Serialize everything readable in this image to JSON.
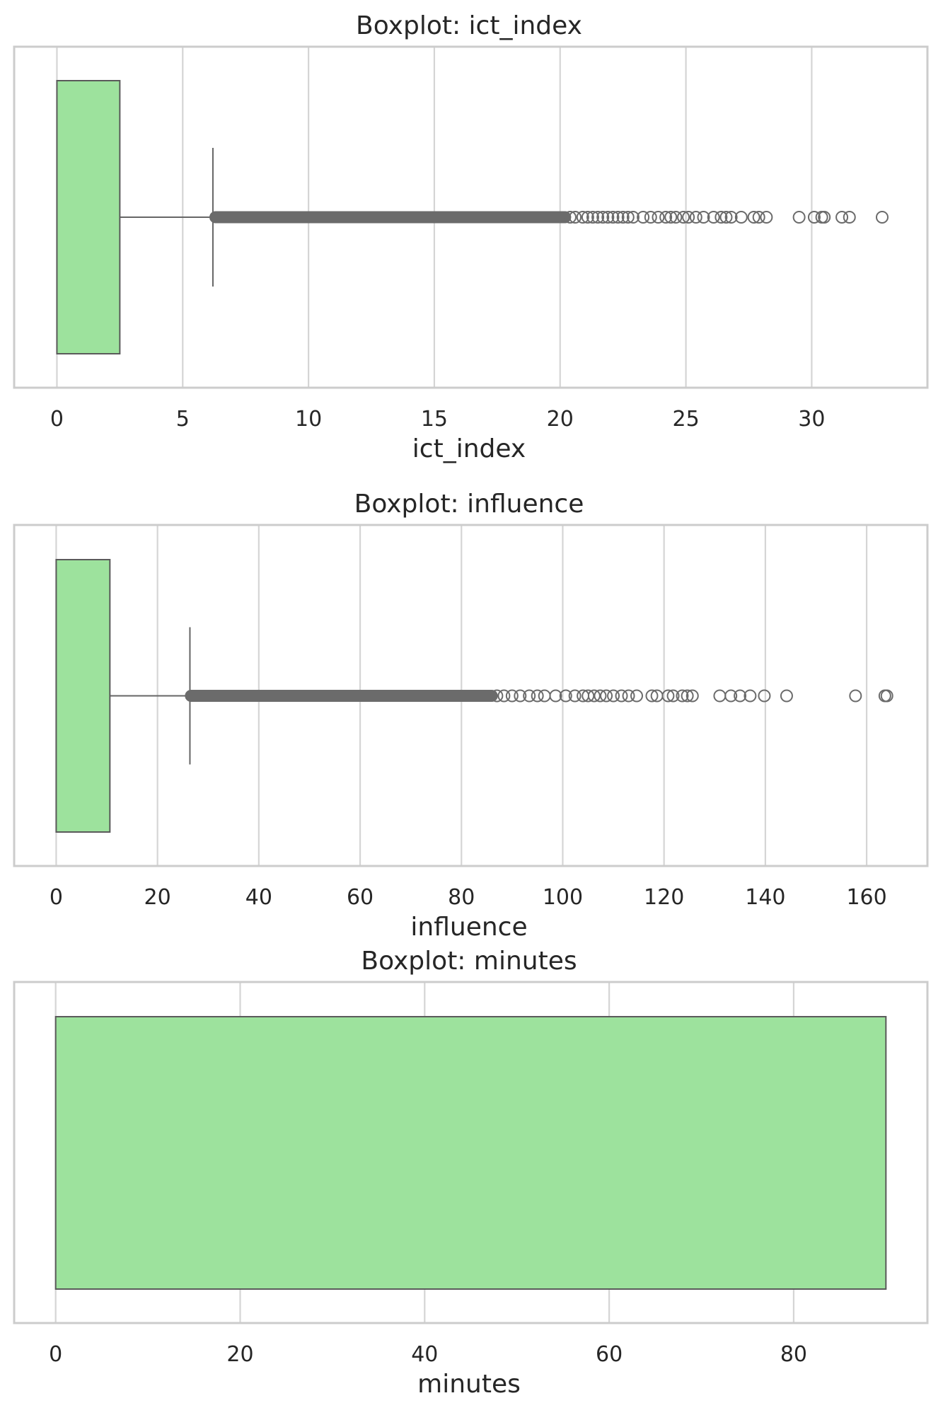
{
  "chart_data": [
    {
      "type": "boxplot",
      "title": "Boxplot: ict_index",
      "xlabel": "ict_index",
      "xlim": [
        -1.7,
        34.6
      ],
      "xticks": [
        0,
        5,
        10,
        15,
        20,
        25,
        30
      ],
      "grid": true,
      "box_color": "#9de29d",
      "stats": {
        "min": 0,
        "q1": 0,
        "median": 0,
        "q3": 2.5,
        "whisker_low": 0,
        "whisker_high": 6.2
      },
      "outliers_dense_range": [
        6.3,
        20.2
      ],
      "outliers": [
        20.4,
        20.6,
        20.9,
        21.1,
        21.3,
        21.5,
        21.7,
        21.9,
        22.1,
        22.3,
        22.5,
        22.7,
        22.9,
        23.3,
        23.6,
        23.9,
        24.2,
        24.4,
        24.6,
        24.9,
        25.1,
        25.4,
        25.7,
        26.1,
        26.4,
        26.6,
        26.8,
        27.2,
        27.7,
        27.9,
        28.2,
        29.5,
        30.1,
        30.4,
        30.5,
        31.2,
        31.5,
        32.8
      ]
    },
    {
      "type": "boxplot",
      "title": "Boxplot: influence",
      "xlabel": "influence",
      "xlim": [
        -8.3,
        172.0
      ],
      "xticks": [
        0,
        20,
        40,
        60,
        80,
        100,
        120,
        140,
        160
      ],
      "grid": true,
      "box_color": "#9de29d",
      "stats": {
        "min": 0,
        "q1": 0,
        "median": 0,
        "q3": 10.6,
        "whisker_low": 0,
        "whisker_high": 26.4
      },
      "outliers_dense_range": [
        26.6,
        86.0
      ],
      "outliers": [
        87.0,
        88.4,
        90.0,
        91.6,
        93.4,
        95.0,
        96.4,
        98.6,
        100.6,
        102.4,
        104.0,
        105.0,
        106.2,
        107.4,
        108.6,
        110.0,
        111.6,
        113.0,
        114.6,
        117.6,
        118.6,
        120.8,
        121.8,
        123.6,
        124.6,
        125.6,
        131.0,
        133.2,
        135.0,
        137.0,
        139.8,
        144.2,
        157.8,
        163.6,
        164.0
      ]
    },
    {
      "type": "boxplot",
      "title": "Boxplot: minutes",
      "xlabel": "minutes",
      "xlim": [
        -4.5,
        94.5
      ],
      "xticks": [
        0,
        20,
        40,
        60,
        80
      ],
      "grid": true,
      "box_color": "#9de29d",
      "stats": {
        "min": 0,
        "q1": 0,
        "median": 0,
        "q3": 90,
        "whisker_low": 0,
        "whisker_high": 90
      },
      "outliers": []
    }
  ]
}
